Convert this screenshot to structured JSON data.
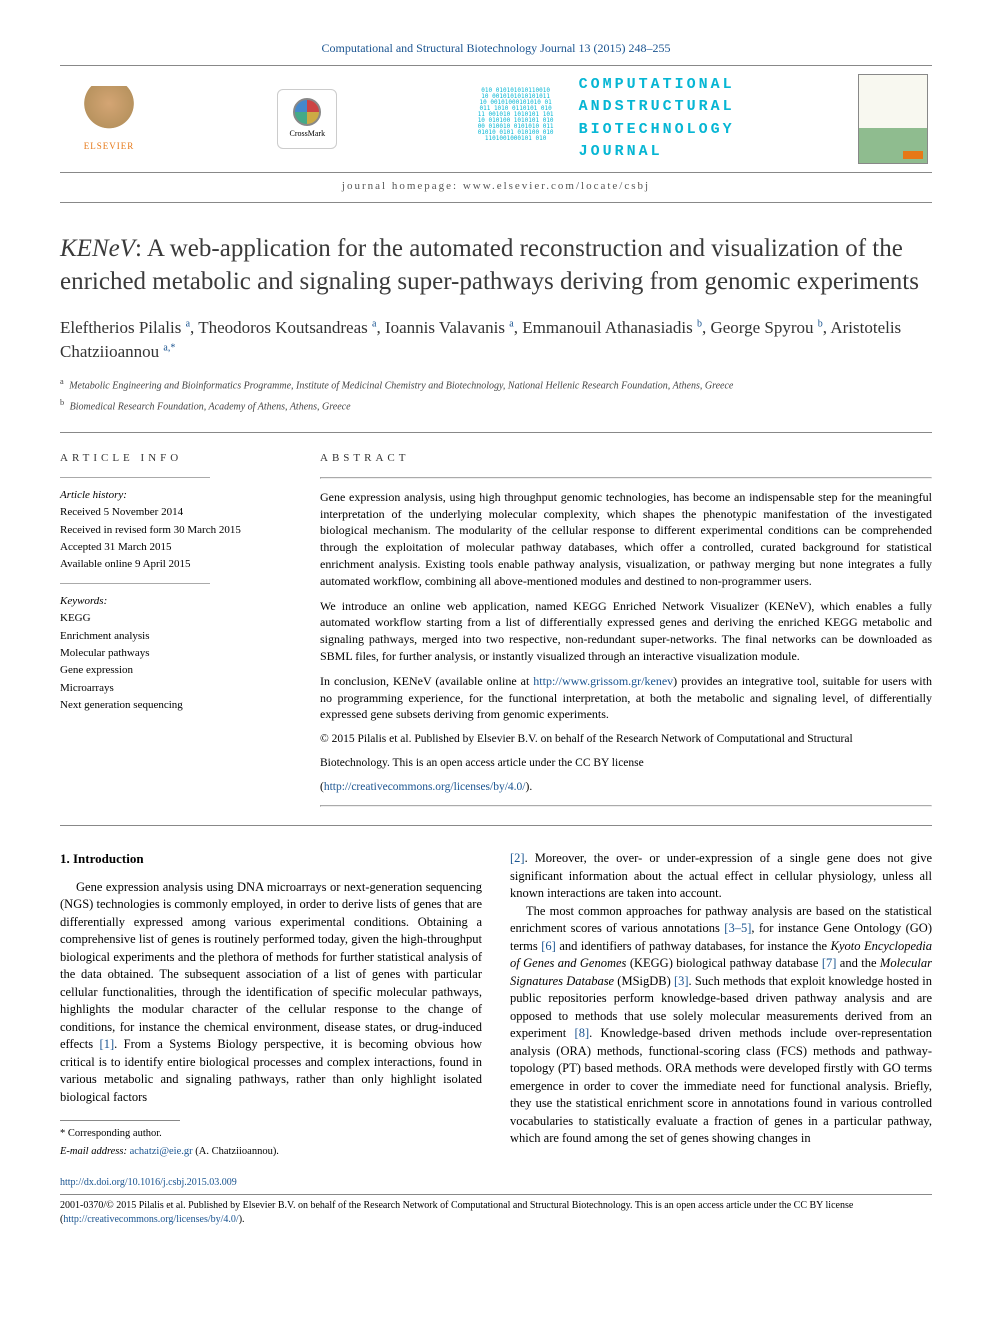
{
  "top_citation": "Computational and Structural Biotechnology Journal 13 (2015) 248–255",
  "publisher": "ELSEVIER",
  "crossmark": "CrossMark",
  "journal_name_lines": [
    "COMPUTATIONAL",
    "ANDSTRUCTURAL",
    "BIOTECHNOLOGY",
    "JOURNAL"
  ],
  "homepage": "journal homepage: www.elsevier.com/locate/csbj",
  "title_prefix": "KENeV",
  "title_rest": ": A web-application for the automated reconstruction and visualization of the enriched metabolic and signaling super-pathways deriving from genomic experiments",
  "authors_html": "Eleftherios Pilalis <sup>a</sup>, Theodoros Koutsandreas <sup>a</sup>, Ioannis Valavanis <sup>a</sup>, Emmanouil Athanasiadis <sup>b</sup>, George Spyrou <sup>b</sup>, Aristotelis Chatziioannou <sup>a,*</sup>",
  "affiliations": [
    {
      "sup": "a",
      "text": "Metabolic Engineering and Bioinformatics Programme, Institute of Medicinal Chemistry and Biotechnology, National Hellenic Research Foundation, Athens, Greece"
    },
    {
      "sup": "b",
      "text": "Biomedical Research Foundation, Academy of Athens, Athens, Greece"
    }
  ],
  "article_info_heading": "ARTICLE INFO",
  "abstract_heading": "ABSTRACT",
  "history_label": "Article history:",
  "history": [
    "Received 5 November 2014",
    "Received in revised form 30 March 2015",
    "Accepted 31 March 2015",
    "Available online 9 April 2015"
  ],
  "keywords_label": "Keywords:",
  "keywords": [
    "KEGG",
    "Enrichment analysis",
    "Molecular pathways",
    "Gene expression",
    "Microarrays",
    "Next generation sequencing"
  ],
  "abstract": {
    "p1": "Gene expression analysis, using high throughput genomic technologies, has become an indispensable step for the meaningful interpretation of the underlying molecular complexity, which shapes the phenotypic manifestation of the investigated biological mechanism. The modularity of the cellular response to different experimental conditions can be comprehended through the exploitation of molecular pathway databases, which offer a controlled, curated background for statistical enrichment analysis. Existing tools enable pathway analysis, visualization, or pathway merging but none integrates a fully automated workflow, combining all above-mentioned modules and destined to non-programmer users.",
    "p2_pre": "We introduce an online web application, named ",
    "p2_em1": "KEGG Enriched Network Visualizer",
    "p2_mid1": " (",
    "p2_em2": "KENeV",
    "p2_mid2": "), which enables a fully automated workflow starting from a list of differentially expressed genes and deriving the enriched KEGG metabolic and signaling pathways, merged into two respective, non-redundant super-networks. The final networks can be downloaded as SBML files, for further analysis, or instantly visualized through an interactive visualization module.",
    "p3_pre": "In conclusion, ",
    "p3_em": "KENeV",
    "p3_mid": " (available online at ",
    "p3_url": "http://www.grissom.gr/kenev",
    "p3_post": ") provides an integrative tool, suitable for users with no programming experience, for the functional interpretation, at both the metabolic and signaling level, of differentially expressed gene subsets deriving from genomic experiments.",
    "copyright1": "© 2015 Pilalis et al. Published by Elsevier B.V. on behalf of the Research Network of Computational and Structural",
    "copyright2": "Biotechnology. This is an open access article under the CC BY license",
    "cc_url_display": "(http://creativecommons.org/licenses/by/4.0/).",
    "cc_url": "http://creativecommons.org/licenses/by/4.0/"
  },
  "section1_heading": "1. Introduction",
  "intro": {
    "p1_a": "Gene expression analysis using DNA microarrays or next-generation sequencing (NGS) technologies is commonly employed, in order to derive lists of genes that are differentially expressed among various experimental conditions. Obtaining a comprehensive list of genes is routinely performed today, given the high-throughput biological experiments and the plethora of methods for further statistical analysis of the data obtained. The subsequent association of a list of genes with particular cellular functionalities, through the identification of specific molecular pathways, highlights the modular character of the cellular response to the change of conditions, for instance the chemical environment, disease states, or drug-induced effects ",
    "p1_ref1": "[1]",
    "p1_b": ". From a Systems Biology perspective, it is becoming obvious how critical is to identify entire biological processes and complex interactions, found in various metabolic and signaling pathways, rather than only highlight isolated biological factors ",
    "p1_ref2": "[2]",
    "p1_c": ". Moreover, the over- or under-expression of a single gene does not give significant information about the actual effect in cellular physiology, unless all known interactions are taken into account.",
    "p2_a": "The most common approaches for pathway analysis are based on the statistical enrichment scores of various annotations ",
    "p2_ref1": "[3–5]",
    "p2_b": ", for instance Gene Ontology (GO) terms ",
    "p2_ref2": "[6]",
    "p2_c": " and identifiers of pathway databases, for instance the ",
    "p2_em1": "Kyoto Encyclopedia of Genes and Genomes",
    "p2_d": " (KEGG) biological pathway database ",
    "p2_ref3": "[7]",
    "p2_e": " and the ",
    "p2_em2": "Molecular Signatures Database",
    "p2_f": " (MSigDB) ",
    "p2_ref4": "[3]",
    "p2_g": ". Such methods that exploit knowledge hosted in public repositories perform knowledge-based driven pathway analysis and are opposed to methods that use solely molecular measurements derived from an experiment ",
    "p2_ref5": "[8]",
    "p2_h": ". Knowledge-based driven methods include over-representation analysis (ORA) methods, functional-scoring class (FCS) methods and pathway-topology (PT) based methods. ORA methods were developed firstly with GO terms emergence in order to cover the immediate need for functional analysis. Briefly, they use the statistical enrichment score in annotations found in various controlled vocabularies to statistically evaluate a fraction of genes in a particular pathway, which are found among the set of genes showing changes in"
  },
  "corresponding": "* Corresponding author.",
  "email_label": "E-mail address:",
  "email": "achatzi@eie.gr",
  "email_owner": "(A. Chatziioannou).",
  "doi_url": "http://dx.doi.org/10.1016/j.csbj.2015.03.009",
  "footer_issn": "2001-0370/© 2015 Pilalis et al. Published by Elsevier B.V. on behalf of the Research Network of Computational and Structural Biotechnology. This is an open access article under the CC BY license (",
  "footer_cc_url": "http://creativecommons.org/licenses/by/4.0/",
  "footer_close": ")."
}
